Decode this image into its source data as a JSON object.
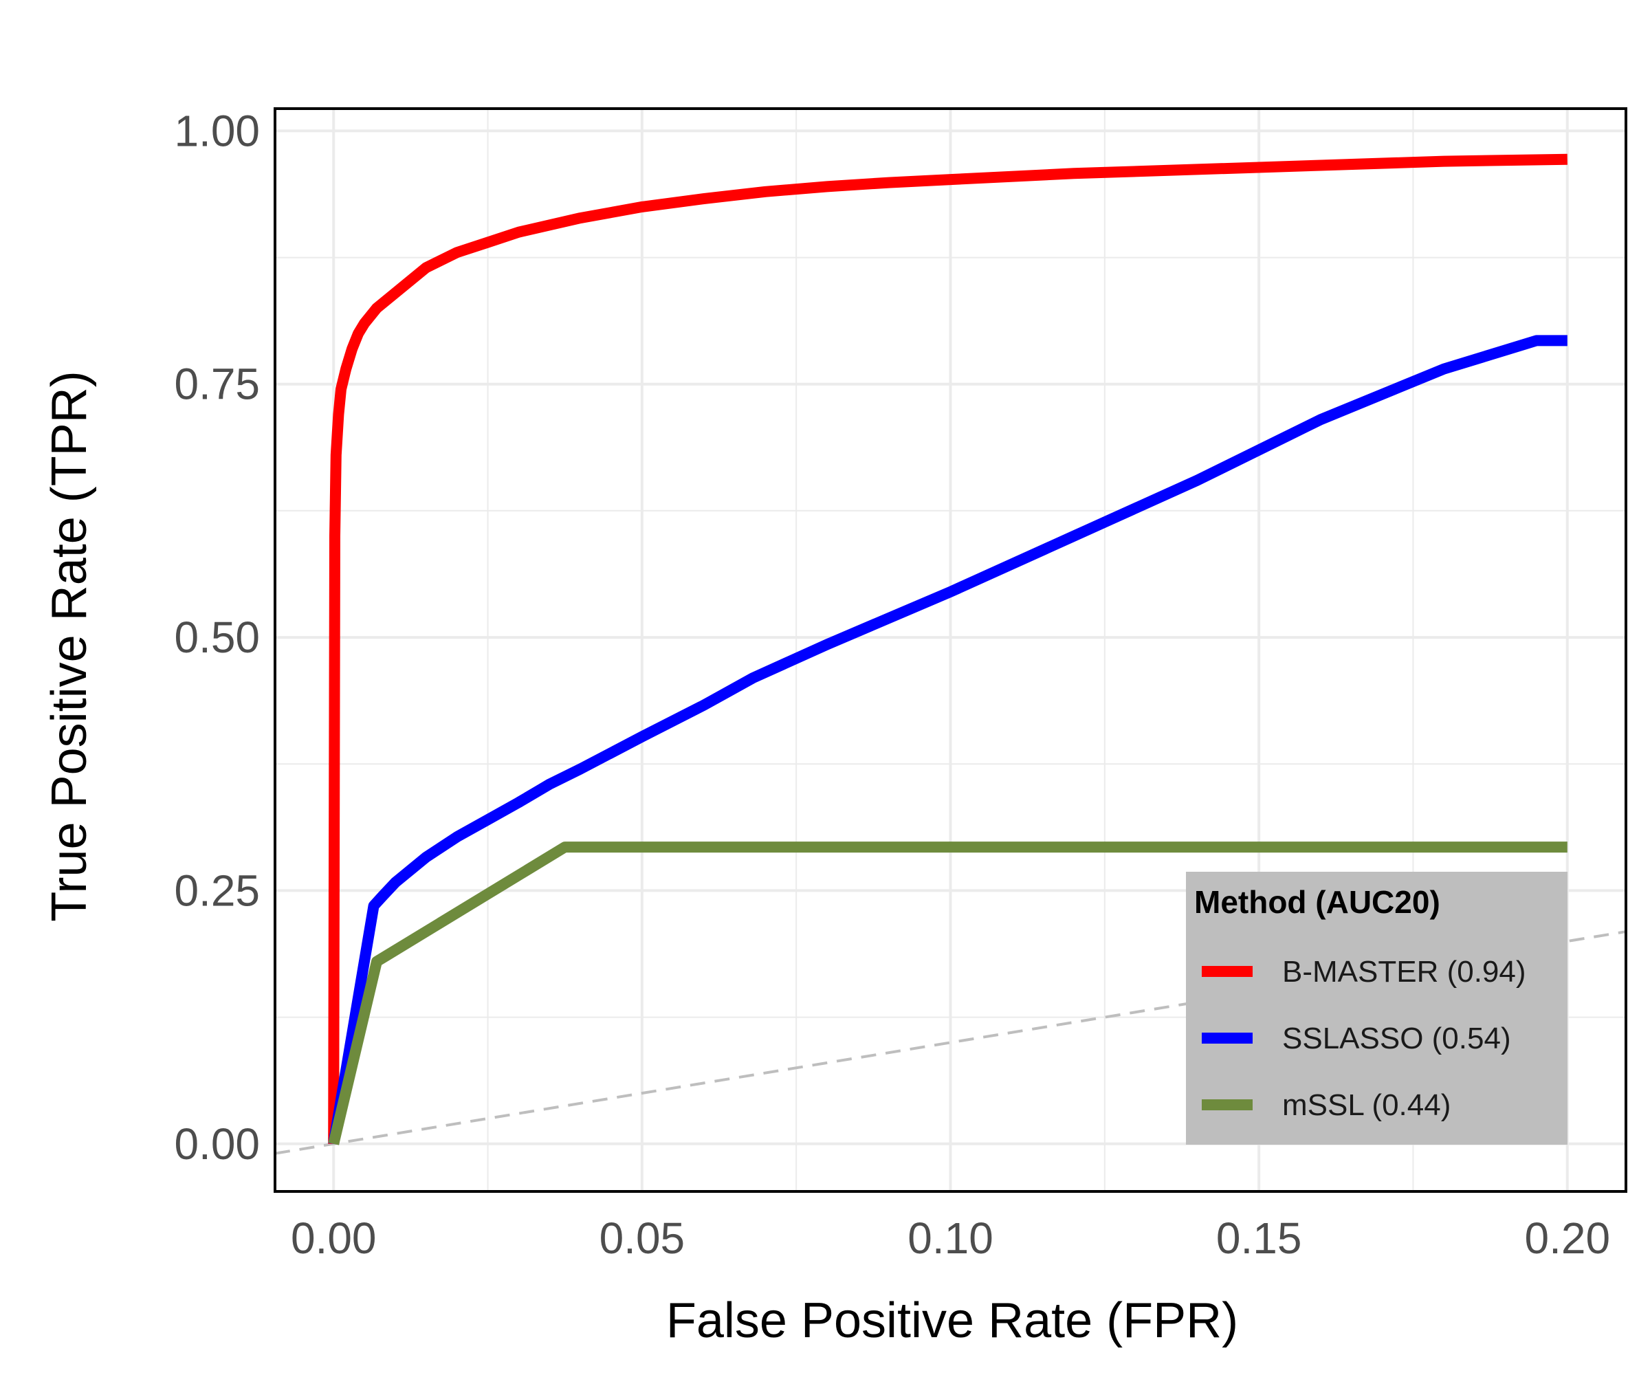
{
  "chart_data": {
    "type": "line",
    "title": "",
    "xlabel": "False Positive Rate (FPR)",
    "ylabel": "True Positive Rate (TPR)",
    "xlim": [
      -0.0095,
      0.2095
    ],
    "ylim": [
      -0.047,
      1.022
    ],
    "x_ticks": [
      "0.00",
      "0.05",
      "0.10",
      "0.15",
      "0.20"
    ],
    "y_ticks": [
      "0.00",
      "0.25",
      "0.50",
      "0.75",
      "1.00"
    ],
    "x_tick_values": [
      0,
      0.05,
      0.1,
      0.15,
      0.2
    ],
    "y_tick_values": [
      0,
      0.25,
      0.5,
      0.75,
      1.0
    ],
    "grid": true,
    "legend": {
      "title": "Method (AUC20)",
      "position": "bottom-right"
    },
    "reference_line": {
      "type": "diagonal",
      "style": "dashed",
      "color": "#bebebe"
    },
    "series": [
      {
        "name": "B-MASTER (0.94)",
        "color": "#ff0000",
        "x": [
          0,
          0.0002,
          0.0004,
          0.0008,
          0.0012,
          0.002,
          0.003,
          0.004,
          0.005,
          0.007,
          0.01,
          0.015,
          0.02,
          0.025,
          0.03,
          0.04,
          0.05,
          0.06,
          0.07,
          0.08,
          0.09,
          0.1,
          0.12,
          0.14,
          0.16,
          0.18,
          0.2
        ],
        "y": [
          0,
          0.6,
          0.68,
          0.72,
          0.745,
          0.765,
          0.785,
          0.8,
          0.81,
          0.825,
          0.84,
          0.865,
          0.88,
          0.89,
          0.9,
          0.914,
          0.925,
          0.933,
          0.94,
          0.945,
          0.949,
          0.952,
          0.958,
          0.962,
          0.966,
          0.97,
          0.972
        ]
      },
      {
        "name": "SSLASSO (0.54)",
        "color": "#0000ff",
        "x": [
          0,
          0.0065,
          0.008,
          0.01,
          0.015,
          0.02,
          0.025,
          0.03,
          0.035,
          0.04,
          0.05,
          0.06,
          0.068,
          0.08,
          0.1,
          0.12,
          0.14,
          0.16,
          0.18,
          0.195,
          0.2
        ],
        "y": [
          0,
          0.235,
          0.245,
          0.258,
          0.283,
          0.303,
          0.32,
          0.337,
          0.355,
          0.37,
          0.402,
          0.433,
          0.46,
          0.493,
          0.545,
          0.6,
          0.655,
          0.715,
          0.765,
          0.793,
          0.793
        ]
      },
      {
        "name": "mSSL (0.44)",
        "color": "#6e8b3d",
        "x": [
          0,
          0.007,
          0.0375,
          0.2
        ],
        "y": [
          0,
          0.18,
          0.293,
          0.293
        ]
      }
    ]
  }
}
